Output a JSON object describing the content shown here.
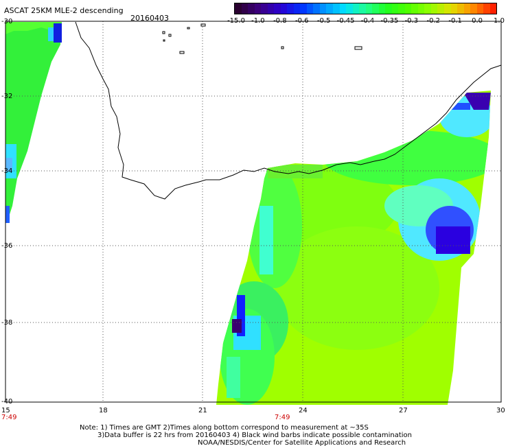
{
  "header": {
    "title": "ASCAT 25KM MLE-2 descending",
    "date": "20160403"
  },
  "colorbar": {
    "labels": [
      "-15.0",
      "-1.0",
      "-0.8",
      "-0.6",
      "-0.5",
      "-0.45",
      "-0.4",
      "-0.35",
      "-0.3",
      "-0.2",
      "-0.1",
      "0.0",
      "1.0"
    ],
    "colors": [
      "#2a0030",
      "#3c0080",
      "#2a00d0",
      "#0030ff",
      "#0090ff",
      "#00e0ff",
      "#20ff90",
      "#20ff20",
      "#50ff00",
      "#90ff00",
      "#e0e000",
      "#ff9000",
      "#ff2000"
    ]
  },
  "axes": {
    "lat_labels": [
      "-30",
      "-32",
      "-34",
      "-36",
      "-38",
      "-40"
    ],
    "lon_labels": [
      "15",
      "18",
      "21",
      "24",
      "27",
      "30"
    ],
    "pass_times": [
      "7:49",
      "7:49"
    ]
  },
  "notes": {
    "line1": "Note: 1) Times are GMT 2)Times along bottom correspond to measurement at ~35S",
    "line2": "3)Data buffer is 22 hrs from 20160403 4) Black wind barbs indicate possible contamination",
    "line3": "NOAA/NESDIS/Center for Satellite Applications and Research"
  }
}
